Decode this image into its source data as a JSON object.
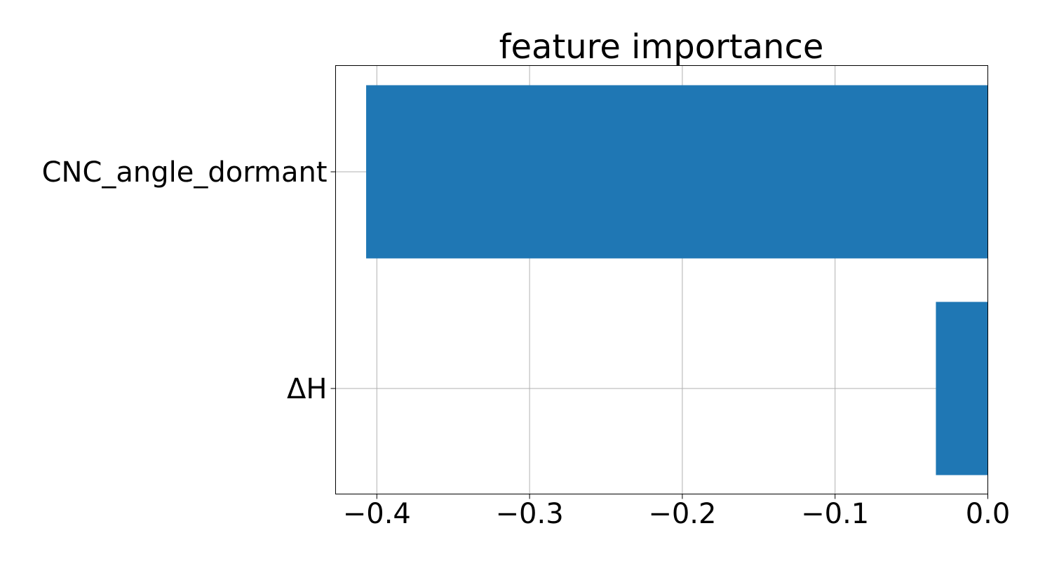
{
  "chart_data": {
    "type": "bar",
    "orientation": "horizontal",
    "title": "feature importance",
    "xlabel": "",
    "ylabel": "",
    "categories": [
      "CNC_angle_dormant",
      "ΔH"
    ],
    "values": [
      -0.407,
      -0.034
    ],
    "xlim": [
      -0.427,
      0.0
    ],
    "xticks": [
      -0.4,
      -0.3,
      -0.2,
      -0.1,
      0.0
    ],
    "xtick_labels": [
      "−0.4",
      "−0.3",
      "−0.2",
      "−0.1",
      "0.0"
    ],
    "grid": true,
    "legend": "none",
    "colors": {
      "bar": "#1f77b4",
      "grid": "#b0b0b0",
      "axis": "#000000"
    }
  }
}
